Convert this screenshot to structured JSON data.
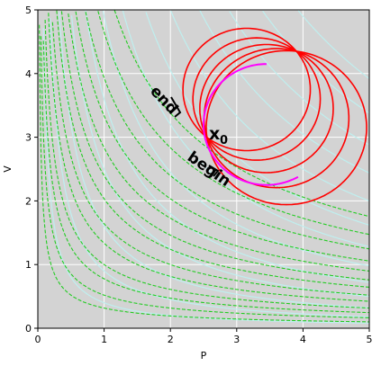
{
  "chart_data": {
    "type": "line",
    "title": "",
    "xlabel": "P",
    "ylabel": "V",
    "xlim": [
      0,
      5
    ],
    "ylim": [
      0,
      5
    ],
    "xticks": [
      "0",
      "1",
      "2",
      "3",
      "4",
      "5"
    ],
    "yticks": [
      "0",
      "1",
      "2",
      "3",
      "4",
      "5"
    ],
    "grid": true,
    "colors": {
      "background": "#d3d3d3",
      "grid": "#ffffff",
      "isotherm": "#bfefef",
      "adiabat": "#22cc22",
      "cycle": "#ff0000",
      "highlight": "#ff00ff"
    },
    "isotherm_constants": [
      0.4,
      0.9,
      1.6,
      2.5,
      3.6,
      4.9,
      6.4,
      8.1,
      10,
      12.2,
      14.4,
      16.9,
      19.6
    ],
    "adiabat_constants": [
      0.2,
      0.4,
      0.7,
      1.0,
      1.5,
      2.0,
      2.7,
      3.4,
      4.3,
      5.4,
      6.8,
      8.6,
      11
    ],
    "adiabat_gamma": 1.4,
    "cycle_start": [
      2.55,
      3.0
    ],
    "cycle_centers": [
      [
        3.15,
        3.75
      ],
      [
        3.3,
        3.6
      ],
      [
        3.45,
        3.45
      ],
      [
        3.6,
        3.3
      ],
      [
        3.75,
        3.15
      ]
    ],
    "highlight_arc": {
      "center": [
        3.45,
        3.2
      ],
      "radius": 0.95,
      "start_deg": 90,
      "end_deg": 300
    },
    "annotations": {
      "point_label": "x",
      "point_sub": "0",
      "end_label": "end",
      "begin_label": "begin"
    }
  }
}
